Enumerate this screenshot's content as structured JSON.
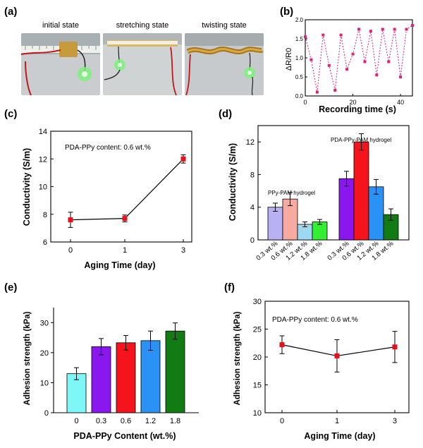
{
  "panels": {
    "a": {
      "label": "(a)",
      "photos": [
        {
          "caption": "initial state"
        },
        {
          "caption": "stretching state"
        },
        {
          "caption": "twisting state"
        }
      ]
    },
    "b": {
      "label": "(b)"
    },
    "c": {
      "label": "(c)"
    },
    "d": {
      "label": "(d)"
    },
    "e": {
      "label": "(e)"
    },
    "f": {
      "label": "(f)"
    }
  },
  "colors": {
    "marker_red": "#e8101a",
    "pink": "#e0207a",
    "bar_cyan": "#7ff7f7",
    "bar_purple": "#8a18ee",
    "bar_red": "#f5141b",
    "bar_blue": "#2a92f5",
    "bar_green": "#137b13",
    "bar_lavender": "#b8b2f5",
    "bar_salmon": "#f7aaa0",
    "bar_lightblue": "#9ed9f2",
    "bar_lime": "#33ee33"
  },
  "chart_data": [
    {
      "id": "b",
      "type": "line",
      "xlabel": "Recording time (s)",
      "ylabel": "ΔR/R0",
      "xlim": [
        0,
        45
      ],
      "ylim": [
        0,
        2.0
      ],
      "xticks": [
        "0",
        "20",
        "40"
      ],
      "yticks": [
        "0.0",
        "0.5",
        "1.0",
        "1.5",
        "2.0"
      ],
      "x": [
        0,
        2.5,
        5,
        7.5,
        10,
        12.5,
        15,
        17.5,
        20,
        22.5,
        25,
        27.5,
        30,
        32.5,
        35,
        37.5,
        40,
        42.5,
        45
      ],
      "y": [
        1.55,
        0.95,
        0.1,
        1.6,
        0.8,
        0.15,
        1.6,
        0.7,
        1.1,
        1.75,
        0.9,
        1.7,
        0.55,
        1.75,
        0.9,
        1.75,
        0.5,
        1.75,
        1.85
      ]
    },
    {
      "id": "c",
      "type": "line",
      "xlabel": "Aging Time (day)",
      "ylabel": "Conductivity (S/m)",
      "annotation": "PDA-PPy content: 0.6 wt.%",
      "categories": [
        "0",
        "1",
        "3"
      ],
      "values": [
        7.6,
        7.7,
        12.0
      ],
      "errors": [
        0.55,
        0.25,
        0.3
      ],
      "ylim": [
        6,
        14
      ],
      "yticks": [
        "6",
        "8",
        "10",
        "12",
        "14"
      ]
    },
    {
      "id": "d",
      "type": "bar",
      "ylabel": "Conductivity (S/m)",
      "ylim": [
        0,
        14
      ],
      "yticks": [
        "0",
        "4",
        "8",
        "12"
      ],
      "groups": [
        {
          "name": "PPy-PAM hydrogel",
          "categories": [
            "0.3 wt.%",
            "0.6 wt.%",
            "1.2 wt.%",
            "1.8 wt.%"
          ],
          "values": [
            4.0,
            5.0,
            1.9,
            2.2
          ],
          "errors": [
            0.5,
            0.8,
            0.3,
            0.3
          ]
        },
        {
          "name": "PDA-PPy-PAM hydrogel",
          "categories": [
            "0.3 wt.%",
            "0.6 wt.%",
            "1.2 wt.%",
            "1.8 wt.%"
          ],
          "values": [
            7.5,
            12.0,
            6.5,
            3.1
          ],
          "errors": [
            0.9,
            1.0,
            0.9,
            0.7
          ]
        }
      ]
    },
    {
      "id": "e",
      "type": "bar",
      "xlabel": "PDA-PPy Content (wt.%)",
      "ylabel": "Adhesion strength (kPa)",
      "categories": [
        "0",
        "0.3",
        "0.6",
        "1.2",
        "1.8"
      ],
      "values": [
        13.0,
        22.0,
        23.3,
        24.0,
        27.2
      ],
      "errors": [
        2.0,
        2.7,
        2.4,
        3.2,
        2.7
      ],
      "ylim": [
        0,
        35
      ],
      "yticks": [
        "0",
        "10",
        "20",
        "30"
      ]
    },
    {
      "id": "f",
      "type": "line",
      "xlabel": "Aging Time (day)",
      "ylabel": "Adhesion strength (kPa)",
      "annotation": "PDA-PPy content: 0.6 wt.%",
      "categories": [
        "0",
        "1",
        "3"
      ],
      "values": [
        22.2,
        20.2,
        21.8
      ],
      "errors": [
        1.6,
        2.9,
        2.8
      ],
      "ylim": [
        10,
        30
      ],
      "yticks": [
        "10",
        "15",
        "20",
        "25",
        "30"
      ]
    }
  ]
}
